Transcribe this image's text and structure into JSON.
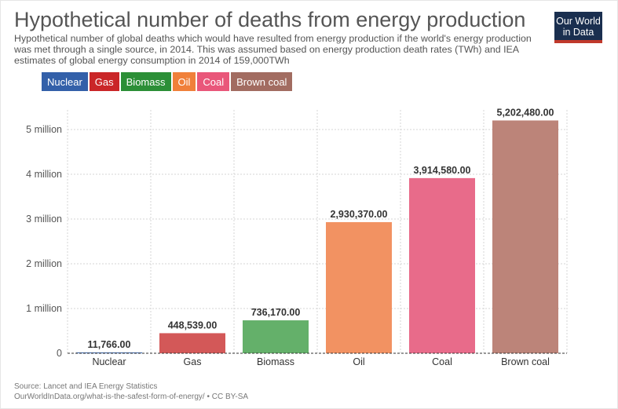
{
  "header": {
    "title": "Hypothetical number of deaths from energy production",
    "subtitle": "Hypothetical number of global deaths which would have resulted from energy production if the world's energy production was met through a single source, in 2014. This was assumed based on energy production death rates (TWh) and IEA estimates of global energy consumption in 2014 of 159,000TWh",
    "logo_line1": "Our World",
    "logo_line2": "in Data"
  },
  "legend": [
    {
      "label": "Nuclear",
      "color": "#3360a9"
    },
    {
      "label": "Gas",
      "color": "#ca2628"
    },
    {
      "label": "Biomass",
      "color": "#2c8f37"
    },
    {
      "label": "Oil",
      "color": "#f0803a"
    },
    {
      "label": "Coal",
      "color": "#e9577a"
    },
    {
      "label": "Brown coal",
      "color": "#a26c61"
    }
  ],
  "footer": {
    "source": "Source: Lancet and IEA Energy Statistics",
    "url": "OurWorldInData.org/what-is-the-safest-form-of-energy/ • CC BY-SA"
  },
  "chart_data": {
    "type": "bar",
    "categories": [
      "Nuclear",
      "Gas",
      "Biomass",
      "Oil",
      "Coal",
      "Brown coal"
    ],
    "values": [
      11766,
      448539,
      736170,
      2930370,
      3914580,
      5202480
    ],
    "value_labels": [
      "11,766.00",
      "448,539.00",
      "736,170.00",
      "2,930,370.00",
      "3,914,580.00",
      "5,202,480.00"
    ],
    "bar_colors": [
      "#3360a9",
      "#d35858",
      "#64b06a",
      "#f29262",
      "#e86b8a",
      "#bc8479"
    ],
    "yticks": [
      0,
      1000000,
      2000000,
      3000000,
      4000000,
      5000000
    ],
    "ytick_labels": [
      "0",
      "1 million",
      "2 million",
      "3 million",
      "4 million",
      "5 million"
    ],
    "ylim": [
      0,
      5500000
    ],
    "grid": true,
    "legend_position": "top-left",
    "title": "Hypothetical number of deaths from energy production",
    "xlabel": "",
    "ylabel": ""
  }
}
